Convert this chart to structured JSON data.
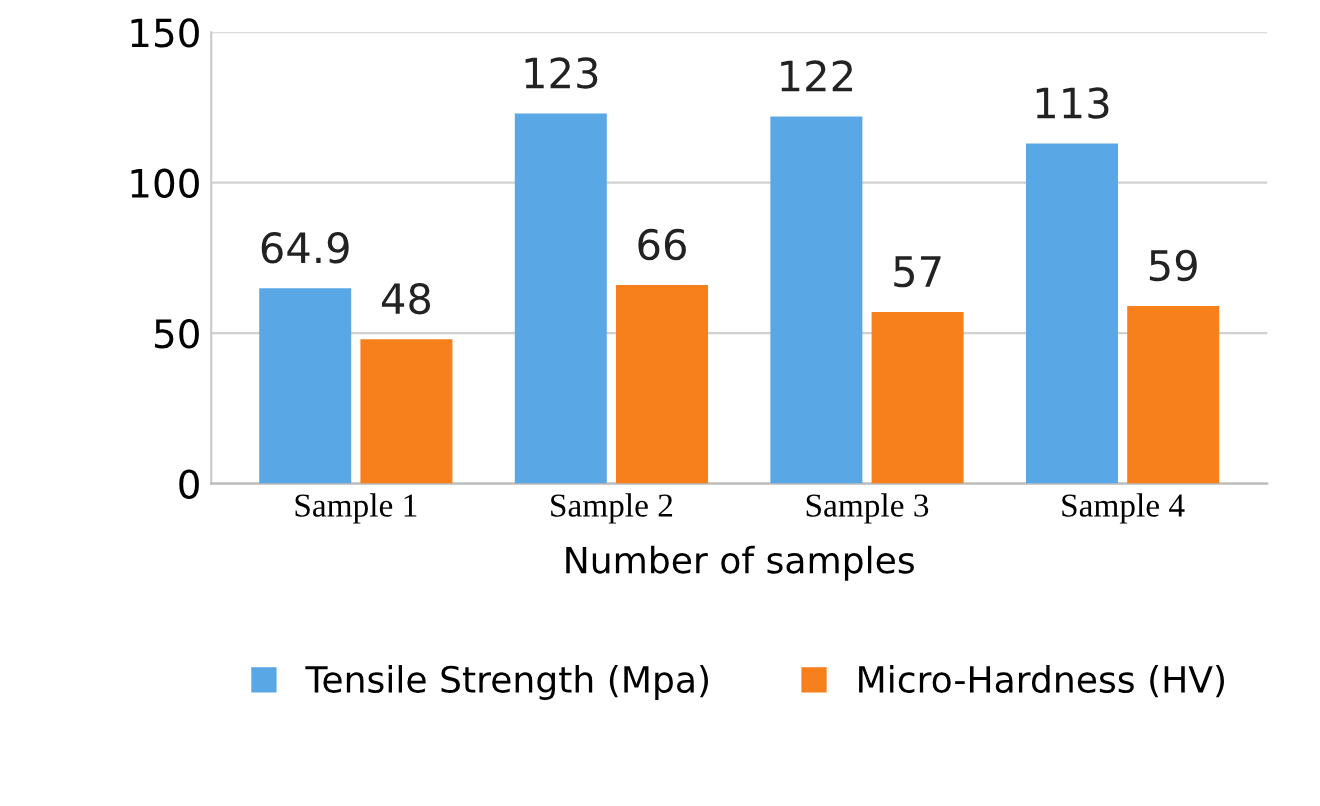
{
  "chart_data": {
    "type": "bar",
    "xlabel": "Number of samples",
    "categories": [
      "Sample 1",
      "Sample 2",
      "Sample 3",
      "Sample 4"
    ],
    "series": [
      {
        "name": "Tensile Strength (Mpa)",
        "color": "#5aa7e6",
        "values": [
          64.9,
          123,
          122,
          113
        ]
      },
      {
        "name": "Micro-Hardness (HV)",
        "color": "#f7801c",
        "values": [
          48,
          66,
          57,
          59
        ]
      }
    ],
    "ylim": [
      0,
      150
    ],
    "yticks": [
      0,
      50,
      100,
      150
    ],
    "grid": "y",
    "legend": "bottom",
    "data_labels": true
  }
}
